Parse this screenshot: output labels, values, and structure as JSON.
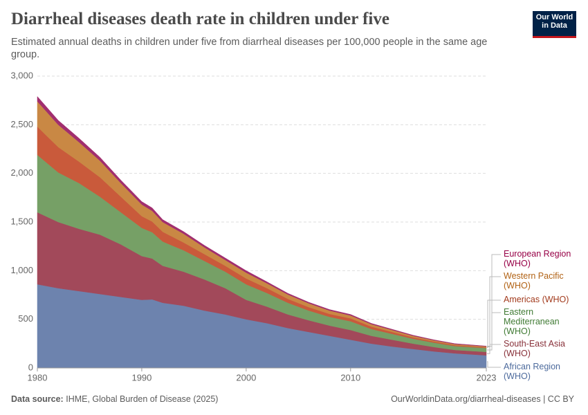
{
  "header": {
    "logo": "Our World in Data"
  },
  "chart_data": {
    "type": "stacked-area",
    "title": "Diarrheal diseases death rate in children under five",
    "subtitle": "Estimated annual deaths in children under five from diarrheal diseases per 100,000 people in the same age group.",
    "x": [
      1980,
      1982,
      1984,
      1986,
      1988,
      1990,
      1991,
      1992,
      1994,
      1996,
      1998,
      2000,
      2002,
      2004,
      2006,
      2008,
      2010,
      2012,
      2014,
      2016,
      2018,
      2020,
      2023
    ],
    "xlim": [
      1980,
      2023
    ],
    "xticks": [
      1980,
      1990,
      2000,
      2010,
      2023
    ],
    "ylim": [
      0,
      3000
    ],
    "yticks": [
      0,
      500,
      {
        "value": 1000,
        "label": "1,000"
      },
      {
        "value": 1500,
        "label": "1,500"
      },
      {
        "value": 2000,
        "label": "2,000"
      },
      {
        "value": 2500,
        "label": "2,500"
      },
      {
        "value": 3000,
        "label": "3,000"
      }
    ],
    "grid": true,
    "series": [
      {
        "name": "African Region (WHO)",
        "color": "#6d83ae",
        "label_color": "#4c6a9c",
        "values": [
          860,
          820,
          790,
          760,
          730,
          700,
          705,
          670,
          640,
          590,
          550,
          500,
          460,
          410,
          370,
          330,
          290,
          250,
          220,
          195,
          170,
          150,
          130
        ]
      },
      {
        "name": "South-East Asia (WHO)",
        "color": "#a2495a",
        "label_color": "#883039",
        "values": [
          740,
          680,
          640,
          610,
          540,
          450,
          420,
          380,
          350,
          320,
          270,
          200,
          170,
          140,
          120,
          105,
          100,
          80,
          70,
          55,
          45,
          35,
          35
        ]
      },
      {
        "name": "Eastern Mediterranean (WHO)",
        "color": "#76a066",
        "label_color": "#3f7a33",
        "values": [
          590,
          510,
          470,
          390,
          330,
          290,
          270,
          250,
          220,
          190,
          170,
          160,
          140,
          120,
          100,
          90,
          90,
          70,
          60,
          50,
          45,
          40,
          40
        ]
      },
      {
        "name": "Americas (WHO)",
        "color": "#c95a3b",
        "label_color": "#a23a1c",
        "values": [
          290,
          260,
          220,
          200,
          160,
          120,
          110,
          100,
          80,
          70,
          60,
          60,
          50,
          40,
          35,
          30,
          30,
          25,
          20,
          15,
          12,
          10,
          7
        ]
      },
      {
        "name": "Western Pacific (WHO)",
        "color": "#c98844",
        "label_color": "#b16214",
        "values": [
          260,
          230,
          200,
          170,
          140,
          120,
          110,
          100,
          90,
          70,
          60,
          60,
          50,
          45,
          40,
          35,
          30,
          25,
          20,
          15,
          12,
          10,
          10
        ]
      },
      {
        "name": "European Region (WHO)",
        "color": "#a12e6f",
        "label_color": "#970046",
        "values": [
          50,
          45,
          40,
          35,
          30,
          30,
          30,
          25,
          22,
          20,
          20,
          20,
          15,
          12,
          10,
          10,
          10,
          8,
          7,
          6,
          5,
          5,
          3
        ]
      }
    ]
  },
  "footer": {
    "source_label": "Data source:",
    "source": "IHME, Global Burden of Disease (2025)",
    "url": "OurWorldinData.org/diarrheal-diseases | CC BY"
  }
}
